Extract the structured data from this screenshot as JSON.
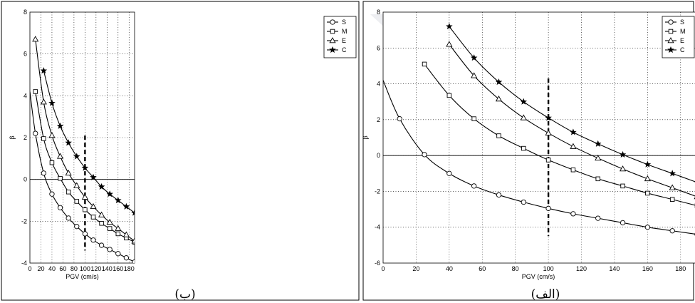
{
  "chart_data": [
    {
      "type": "line",
      "caption": "(ب)",
      "xlabel": "PGV (cm/s)",
      "ylabel": "β",
      "xlim": [
        0,
        190
      ],
      "ylim": [
        -4,
        8
      ],
      "xticks": [
        0,
        20,
        40,
        60,
        80,
        100,
        120,
        140,
        160,
        180
      ],
      "yticks": [
        -4,
        -2,
        0,
        2,
        4,
        6,
        8
      ],
      "grid": true,
      "legend_position": "top-right",
      "reference_x": 100,
      "reference_y_range": [
        -3.4,
        2.1
      ],
      "series": [
        {
          "name": "S",
          "marker": "circle",
          "x": [
            0,
            10,
            25,
            40,
            55,
            70,
            85,
            100,
            115,
            130,
            145,
            160,
            175,
            190
          ],
          "y": [
            4.2,
            2.2,
            0.3,
            -0.7,
            -1.35,
            -1.85,
            -2.25,
            -2.6,
            -2.9,
            -3.15,
            -3.35,
            -3.55,
            -3.75,
            -3.95
          ],
          "marker_x": [
            10,
            25,
            40,
            55,
            70,
            85,
            100,
            115,
            130,
            145,
            160,
            175,
            190
          ]
        },
        {
          "name": "M",
          "marker": "square",
          "x": [
            10,
            25,
            40,
            55,
            70,
            85,
            100,
            115,
            130,
            145,
            160,
            175,
            190
          ],
          "y": [
            4.2,
            1.95,
            0.8,
            0.05,
            -0.6,
            -1.05,
            -1.45,
            -1.8,
            -2.1,
            -2.35,
            -2.6,
            -2.8,
            -3.0
          ]
        },
        {
          "name": "E",
          "marker": "triangle",
          "x": [
            10,
            25,
            40,
            55,
            70,
            85,
            100,
            115,
            130,
            145,
            160,
            175,
            190
          ],
          "y": [
            6.7,
            3.7,
            2.1,
            1.1,
            0.3,
            -0.3,
            -0.85,
            -1.3,
            -1.7,
            -2.05,
            -2.35,
            -2.65,
            -2.95
          ]
        },
        {
          "name": "C",
          "marker": "star",
          "x": [
            25,
            40,
            55,
            70,
            85,
            100,
            115,
            130,
            145,
            160,
            175,
            190
          ],
          "y": [
            5.2,
            3.65,
            2.55,
            1.75,
            1.1,
            0.55,
            0.1,
            -0.35,
            -0.7,
            -1.0,
            -1.3,
            -1.6
          ]
        }
      ]
    },
    {
      "type": "line",
      "caption": "(الف)",
      "xlabel": "PGV (cm/s)",
      "ylabel": "β",
      "xlim": [
        0,
        190
      ],
      "ylim": [
        -6,
        8
      ],
      "xticks": [
        0,
        20,
        40,
        60,
        80,
        100,
        120,
        140,
        160,
        180
      ],
      "yticks": [
        -6,
        -4,
        -2,
        0,
        2,
        4,
        6,
        8
      ],
      "grid": true,
      "legend_position": "top-right",
      "reference_x": 100,
      "reference_y_range": [
        -4.5,
        4.3
      ],
      "series": [
        {
          "name": "S",
          "marker": "circle",
          "x": [
            0,
            10,
            25,
            40,
            55,
            70,
            85,
            100,
            115,
            130,
            145,
            160,
            175,
            190
          ],
          "y": [
            4.2,
            2.05,
            0.05,
            -1.0,
            -1.7,
            -2.2,
            -2.6,
            -2.95,
            -3.25,
            -3.5,
            -3.75,
            -4.0,
            -4.2,
            -4.4
          ],
          "marker_x": [
            10,
            25,
            40,
            55,
            70,
            85,
            100,
            115,
            130,
            145,
            160,
            175,
            190
          ]
        },
        {
          "name": "M",
          "marker": "square",
          "x": [
            25,
            40,
            55,
            70,
            85,
            100,
            115,
            130,
            145,
            160,
            175,
            190
          ],
          "y": [
            5.1,
            3.35,
            2.05,
            1.1,
            0.4,
            -0.25,
            -0.8,
            -1.3,
            -1.7,
            -2.1,
            -2.45,
            -2.8
          ]
        },
        {
          "name": "E",
          "marker": "triangle",
          "x": [
            40,
            55,
            70,
            85,
            100,
            115,
            130,
            145,
            160,
            175,
            190
          ],
          "y": [
            6.2,
            4.45,
            3.15,
            2.1,
            1.25,
            0.5,
            -0.15,
            -0.75,
            -1.3,
            -1.8,
            -2.3
          ]
        },
        {
          "name": "C",
          "marker": "star",
          "x": [
            40,
            55,
            70,
            85,
            100,
            115,
            130,
            145,
            160,
            175,
            190
          ],
          "y": [
            7.2,
            5.45,
            4.1,
            3.0,
            2.1,
            1.3,
            0.65,
            0.05,
            -0.5,
            -1.0,
            -1.5
          ]
        }
      ]
    }
  ]
}
